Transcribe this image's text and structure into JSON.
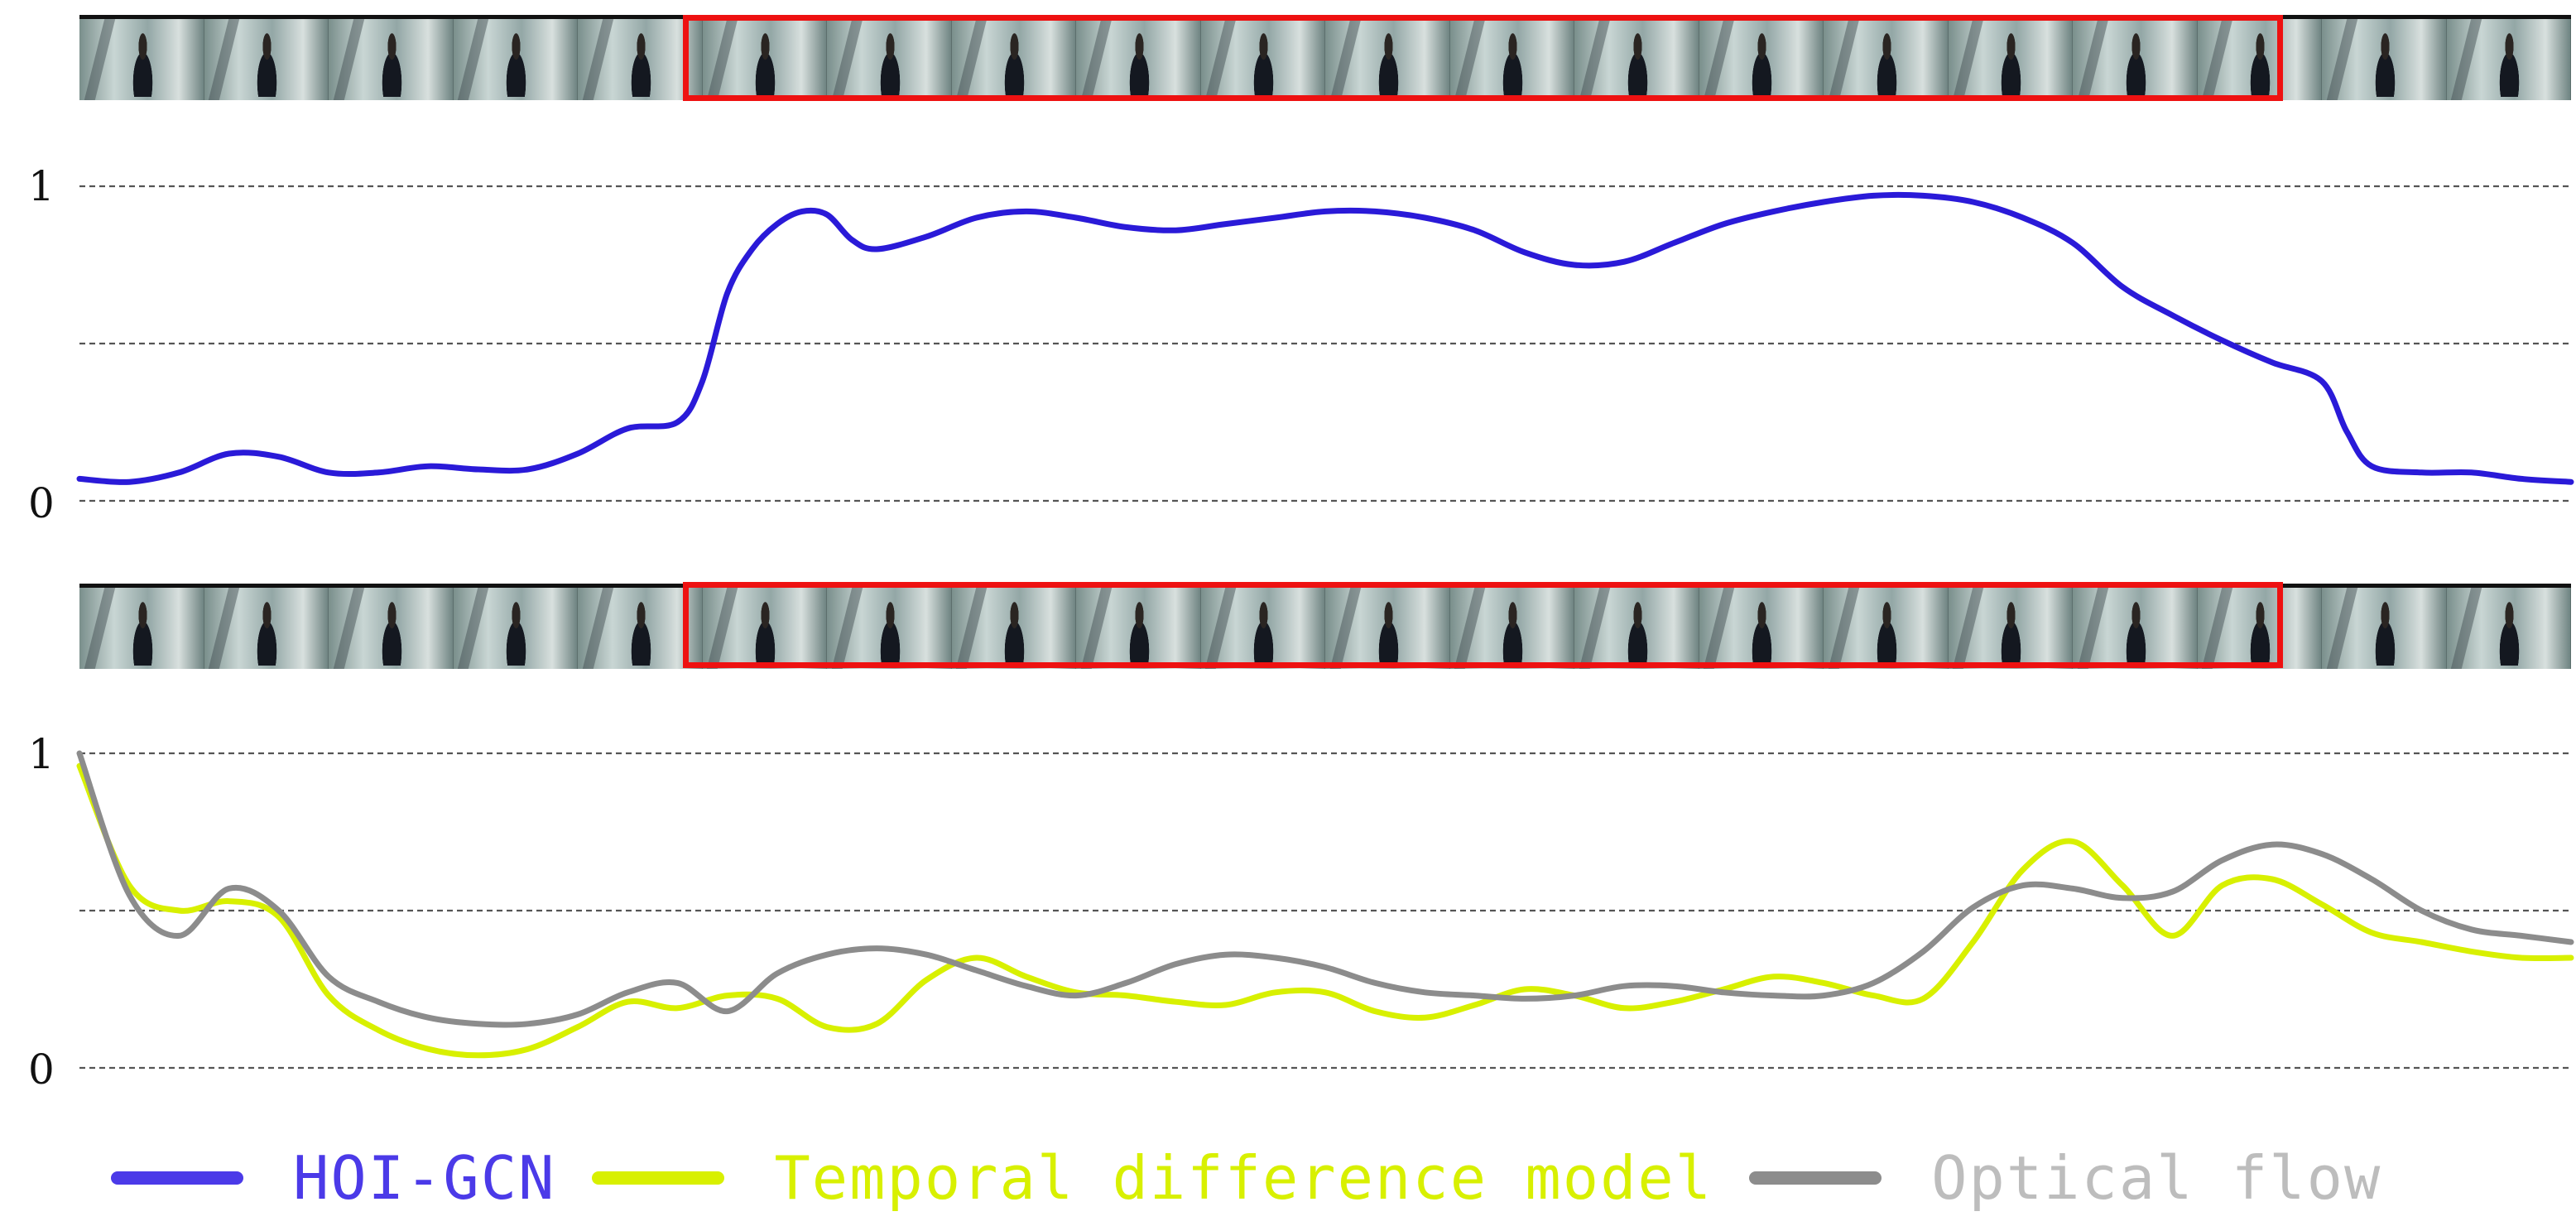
{
  "chart_data": [
    {
      "type": "line",
      "title": "",
      "xlabel": "",
      "ylabel": "",
      "ylim": [
        0,
        1
      ],
      "xlim": [
        0,
        100
      ],
      "yticks": [
        "0",
        "1"
      ],
      "grid": true,
      "highlight_range": [
        24.3,
        88.3
      ],
      "series": [
        {
          "name": "HOI-GCN",
          "color": "#2a1ad8",
          "x": [
            0,
            2,
            4,
            6,
            8,
            10,
            12,
            14,
            16,
            18,
            20,
            22,
            24,
            25,
            26,
            27,
            28,
            29,
            30,
            31,
            32,
            34,
            36,
            38,
            40,
            42,
            44,
            46,
            48,
            50,
            52,
            54,
            56,
            58,
            60,
            62,
            64,
            66,
            68,
            70,
            72,
            74,
            76,
            78,
            80,
            82,
            84,
            86,
            88,
            90,
            91,
            92,
            94,
            96,
            98,
            100
          ],
          "y": [
            0.07,
            0.06,
            0.09,
            0.15,
            0.14,
            0.09,
            0.09,
            0.11,
            0.1,
            0.1,
            0.15,
            0.23,
            0.25,
            0.38,
            0.66,
            0.8,
            0.88,
            0.92,
            0.91,
            0.83,
            0.8,
            0.84,
            0.9,
            0.92,
            0.9,
            0.87,
            0.86,
            0.88,
            0.9,
            0.92,
            0.92,
            0.9,
            0.86,
            0.79,
            0.75,
            0.76,
            0.82,
            0.88,
            0.92,
            0.95,
            0.97,
            0.97,
            0.95,
            0.9,
            0.82,
            0.68,
            0.59,
            0.51,
            0.44,
            0.38,
            0.22,
            0.11,
            0.09,
            0.09,
            0.07,
            0.06
          ]
        }
      ]
    },
    {
      "type": "line",
      "title": "",
      "xlabel": "",
      "ylabel": "",
      "ylim": [
        0,
        1
      ],
      "xlim": [
        0,
        100
      ],
      "yticks": [
        "0",
        "1"
      ],
      "grid": true,
      "highlight_range": [
        24.3,
        88.3
      ],
      "series": [
        {
          "name": "Temporal difference model",
          "color": "#d8f000",
          "x": [
            0,
            2,
            4,
            6,
            8,
            10,
            12,
            14,
            16,
            18,
            20,
            22,
            24,
            26,
            28,
            30,
            32,
            34,
            36,
            38,
            40,
            42,
            44,
            46,
            48,
            50,
            52,
            54,
            56,
            58,
            60,
            62,
            64,
            66,
            68,
            70,
            72,
            74,
            76,
            78,
            80,
            82,
            84,
            86,
            88,
            90,
            92,
            94,
            96,
            98,
            100
          ],
          "y": [
            0.96,
            0.58,
            0.5,
            0.53,
            0.48,
            0.23,
            0.12,
            0.06,
            0.04,
            0.06,
            0.13,
            0.21,
            0.19,
            0.23,
            0.22,
            0.13,
            0.14,
            0.28,
            0.35,
            0.29,
            0.24,
            0.23,
            0.21,
            0.2,
            0.24,
            0.24,
            0.18,
            0.16,
            0.2,
            0.25,
            0.23,
            0.19,
            0.21,
            0.25,
            0.29,
            0.27,
            0.23,
            0.22,
            0.4,
            0.63,
            0.72,
            0.58,
            0.42,
            0.58,
            0.6,
            0.52,
            0.43,
            0.4,
            0.37,
            0.35,
            0.35
          ]
        },
        {
          "name": "Optical flow",
          "color": "#8c8c8c",
          "x": [
            0,
            2,
            4,
            6,
            8,
            10,
            12,
            14,
            16,
            18,
            20,
            22,
            24,
            26,
            28,
            30,
            32,
            34,
            36,
            38,
            40,
            42,
            44,
            46,
            48,
            50,
            52,
            54,
            56,
            58,
            60,
            62,
            64,
            66,
            68,
            70,
            72,
            74,
            76,
            78,
            80,
            82,
            84,
            86,
            88,
            90,
            92,
            94,
            96,
            98,
            100
          ],
          "y": [
            1.0,
            0.55,
            0.42,
            0.57,
            0.5,
            0.29,
            0.21,
            0.16,
            0.14,
            0.14,
            0.17,
            0.24,
            0.27,
            0.18,
            0.3,
            0.36,
            0.38,
            0.36,
            0.31,
            0.26,
            0.23,
            0.27,
            0.33,
            0.36,
            0.35,
            0.32,
            0.27,
            0.24,
            0.23,
            0.22,
            0.23,
            0.26,
            0.26,
            0.24,
            0.23,
            0.23,
            0.27,
            0.37,
            0.51,
            0.58,
            0.57,
            0.54,
            0.56,
            0.66,
            0.71,
            0.68,
            0.6,
            0.5,
            0.44,
            0.42,
            0.4
          ]
        }
      ]
    }
  ],
  "legend": [
    {
      "label": "HOI-GCN",
      "color": "#4b3ae8"
    },
    {
      "label": "Temporal difference model",
      "color": "#d8f000"
    },
    {
      "label": "Optical flow",
      "color": "#8c8c8c"
    }
  ],
  "filmstrip_frames": 20
}
